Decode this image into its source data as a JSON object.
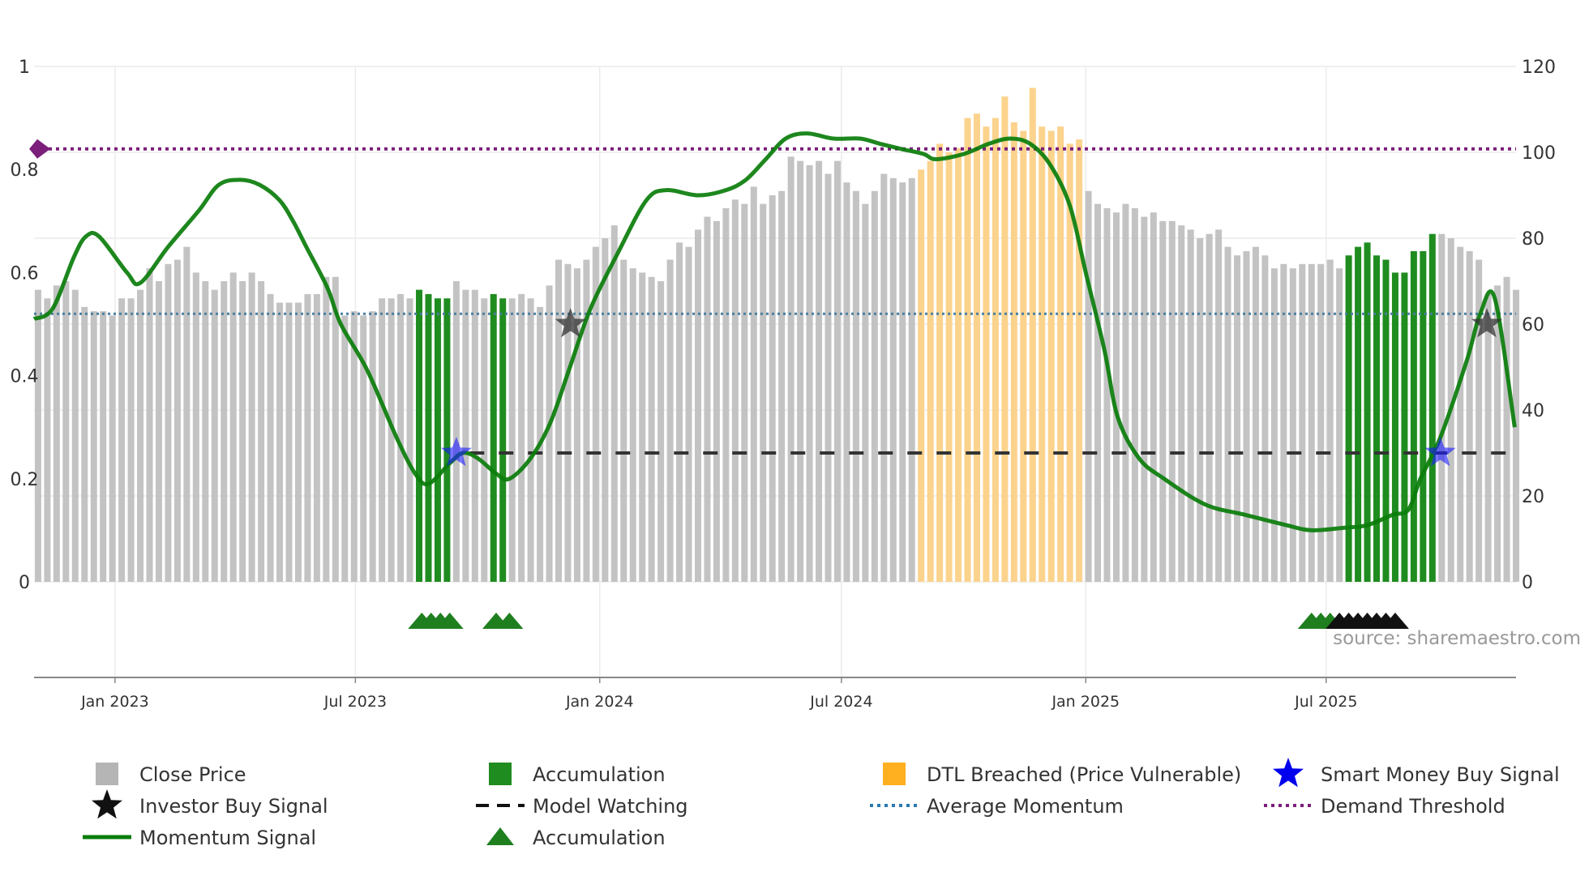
{
  "chart_data": {
    "type": "bar",
    "title": "",
    "source_text": "source: sharemaestro.com",
    "left_axis": {
      "ylim": [
        0,
        1
      ],
      "ticks": [
        0,
        0.2,
        0.4,
        0.6,
        0.8,
        1
      ],
      "tick_labels": [
        "0",
        "0.2",
        "0.4",
        "0.6",
        "0.8",
        "1"
      ]
    },
    "right_axis": {
      "ylim": [
        0,
        120
      ],
      "ticks": [
        0,
        20,
        40,
        60,
        80,
        100,
        120
      ],
      "tick_labels": [
        "0",
        "20",
        "40",
        "60",
        "80",
        "100",
        "120"
      ]
    },
    "x_axis": {
      "start": "2022-11-01",
      "end": "2025-11-21",
      "ticks": [
        {
          "date": "2023-01-01",
          "label": "Jan 2023"
        },
        {
          "date": "2023-07-01",
          "label": "Jul 2023"
        },
        {
          "date": "2024-01-01",
          "label": "Jan 2024"
        },
        {
          "date": "2024-07-01",
          "label": "Jul 2024"
        },
        {
          "date": "2025-01-01",
          "label": "Jan 2025"
        },
        {
          "date": "2025-07-01",
          "label": "Jul 2025"
        }
      ]
    },
    "bars": {
      "start": "2022-11-04",
      "interval_days": 7,
      "close_price": [
        68,
        66,
        69,
        70,
        68,
        64,
        63,
        63,
        62,
        66,
        66,
        68,
        73,
        70,
        74,
        75,
        78,
        72,
        70,
        68,
        70,
        72,
        70,
        72,
        70,
        67,
        65,
        65,
        65,
        67,
        67,
        71,
        71,
        62,
        63,
        62,
        63,
        66,
        66,
        67,
        66,
        68,
        67,
        66,
        66,
        70,
        68,
        68,
        66,
        67,
        66,
        66,
        67,
        66,
        64,
        69,
        75,
        74,
        73,
        75,
        78,
        80,
        83,
        75,
        73,
        72,
        71,
        70,
        75,
        79,
        78,
        82,
        85,
        84,
        87,
        89,
        88,
        92,
        88,
        90,
        91,
        99,
        98,
        97,
        98,
        95,
        98,
        93,
        91,
        88,
        91,
        95,
        94,
        93,
        94,
        96,
        98,
        102,
        100,
        101,
        108,
        109,
        106,
        108,
        113,
        107,
        105,
        115,
        106,
        105,
        106,
        102,
        103,
        91,
        88,
        87,
        86,
        88,
        87,
        85,
        86,
        84,
        84,
        83,
        82,
        80,
        81,
        82,
        78,
        76,
        77,
        78,
        76,
        73,
        74,
        73,
        74,
        74,
        74,
        75,
        73,
        76,
        78,
        79,
        76,
        75,
        72,
        72,
        77,
        77,
        81,
        81,
        80,
        78,
        77,
        75,
        67,
        69,
        71,
        68
      ],
      "state": [
        "n",
        "n",
        "n",
        "n",
        "n",
        "n",
        "n",
        "n",
        "n",
        "n",
        "n",
        "n",
        "n",
        "n",
        "n",
        "n",
        "n",
        "n",
        "n",
        "n",
        "n",
        "n",
        "n",
        "n",
        "n",
        "n",
        "n",
        "n",
        "n",
        "n",
        "n",
        "n",
        "n",
        "n",
        "n",
        "n",
        "n",
        "n",
        "n",
        "n",
        "n",
        "a",
        "a",
        "a",
        "a",
        "n",
        "n",
        "n",
        "n",
        "a",
        "a",
        "n",
        "n",
        "n",
        "n",
        "n",
        "n",
        "n",
        "n",
        "n",
        "n",
        "n",
        "n",
        "n",
        "n",
        "n",
        "n",
        "n",
        "n",
        "n",
        "n",
        "n",
        "n",
        "n",
        "n",
        "n",
        "n",
        "n",
        "n",
        "n",
        "n",
        "n",
        "n",
        "n",
        "n",
        "n",
        "n",
        "n",
        "n",
        "n",
        "n",
        "n",
        "n",
        "n",
        "n",
        "d",
        "d",
        "d",
        "d",
        "d",
        "d",
        "d",
        "d",
        "d",
        "d",
        "d",
        "d",
        "d",
        "d",
        "d",
        "d",
        "d",
        "d",
        "n",
        "n",
        "n",
        "n",
        "n",
        "n",
        "n",
        "n",
        "n",
        "n",
        "n",
        "n",
        "n",
        "n",
        "n",
        "n",
        "n",
        "n",
        "n",
        "n",
        "n",
        "n",
        "n",
        "n",
        "n",
        "n",
        "n",
        "n",
        "a",
        "a",
        "a",
        "a",
        "a",
        "a",
        "a",
        "a",
        "a",
        "a",
        "n",
        "n",
        "n",
        "n",
        "n",
        "n",
        "n",
        "n",
        "n",
        "n"
      ]
    },
    "momentum_signal": [
      [
        "2022-11-01",
        0.51
      ],
      [
        "2022-11-15",
        0.53
      ],
      [
        "2022-12-01",
        0.63
      ],
      [
        "2022-12-10",
        0.67
      ],
      [
        "2022-12-20",
        0.67
      ],
      [
        "2023-01-10",
        0.6
      ],
      [
        "2023-01-20",
        0.58
      ],
      [
        "2023-02-10",
        0.65
      ],
      [
        "2023-03-05",
        0.72
      ],
      [
        "2023-03-20",
        0.77
      ],
      [
        "2023-04-05",
        0.78
      ],
      [
        "2023-04-20",
        0.77
      ],
      [
        "2023-05-05",
        0.74
      ],
      [
        "2023-05-15",
        0.7
      ],
      [
        "2023-05-25",
        0.65
      ],
      [
        "2023-06-10",
        0.57
      ],
      [
        "2023-06-20",
        0.5
      ],
      [
        "2023-07-10",
        0.41
      ],
      [
        "2023-08-01",
        0.28
      ],
      [
        "2023-08-15",
        0.21
      ],
      [
        "2023-08-25",
        0.19
      ],
      [
        "2023-09-10",
        0.23
      ],
      [
        "2023-09-20",
        0.25
      ],
      [
        "2023-10-01",
        0.24
      ],
      [
        "2023-10-15",
        0.21
      ],
      [
        "2023-10-25",
        0.2
      ],
      [
        "2023-11-10",
        0.24
      ],
      [
        "2023-11-25",
        0.31
      ],
      [
        "2023-12-10",
        0.42
      ],
      [
        "2023-12-25",
        0.53
      ],
      [
        "2024-01-15",
        0.64
      ],
      [
        "2024-02-05",
        0.74
      ],
      [
        "2024-02-20",
        0.76
      ],
      [
        "2024-03-15",
        0.75
      ],
      [
        "2024-04-05",
        0.76
      ],
      [
        "2024-04-20",
        0.78
      ],
      [
        "2024-05-05",
        0.82
      ],
      [
        "2024-05-20",
        0.86
      ],
      [
        "2024-06-05",
        0.87
      ],
      [
        "2024-06-25",
        0.86
      ],
      [
        "2024-07-15",
        0.86
      ],
      [
        "2024-07-30",
        0.85
      ],
      [
        "2024-08-15",
        0.84
      ],
      [
        "2024-09-01",
        0.83
      ],
      [
        "2024-09-10",
        0.82
      ],
      [
        "2024-10-01",
        0.83
      ],
      [
        "2024-10-20",
        0.85
      ],
      [
        "2024-11-05",
        0.86
      ],
      [
        "2024-11-20",
        0.85
      ],
      [
        "2024-12-05",
        0.81
      ],
      [
        "2024-12-20",
        0.73
      ],
      [
        "2025-01-01",
        0.6
      ],
      [
        "2025-01-15",
        0.45
      ],
      [
        "2025-01-25",
        0.32
      ],
      [
        "2025-02-10",
        0.24
      ],
      [
        "2025-03-01",
        0.2
      ],
      [
        "2025-04-01",
        0.15
      ],
      [
        "2025-05-01",
        0.13
      ],
      [
        "2025-06-01",
        0.11
      ],
      [
        "2025-06-20",
        0.1
      ],
      [
        "2025-07-15",
        0.105
      ],
      [
        "2025-08-01",
        0.11
      ],
      [
        "2025-08-20",
        0.13
      ],
      [
        "2025-09-01",
        0.14
      ],
      [
        "2025-09-10",
        0.2
      ],
      [
        "2025-09-25",
        0.28
      ],
      [
        "2025-10-15",
        0.43
      ],
      [
        "2025-10-25",
        0.52
      ],
      [
        "2025-11-05",
        0.55
      ],
      [
        "2025-11-20",
        0.3
      ]
    ],
    "average_momentum": 0.52,
    "demand_threshold": 0.84,
    "model_watching": {
      "value": 0.25,
      "start": "2023-09-25",
      "end": "2025-11-20"
    },
    "smart_money_buy_signals": [
      {
        "date": "2023-09-15",
        "value": 0.25
      },
      {
        "date": "2025-09-25",
        "value": 0.25
      }
    ],
    "investor_buy_signals": [
      {
        "date": "2023-12-10",
        "value": 0.5
      },
      {
        "date": "2025-10-30",
        "value": 0.5
      }
    ],
    "accumulation_markers": [
      {
        "date": "2023-08-20",
        "color": "#1f7f1f"
      },
      {
        "date": "2023-08-27",
        "color": "#1f7f1f"
      },
      {
        "date": "2023-09-03",
        "color": "#1f7f1f"
      },
      {
        "date": "2023-09-10",
        "color": "#1f7f1f"
      },
      {
        "date": "2023-10-15",
        "color": "#1f7f1f"
      },
      {
        "date": "2023-10-25",
        "color": "#1f7f1f"
      },
      {
        "date": "2025-06-20",
        "color": "#1f7f1f"
      },
      {
        "date": "2025-06-27",
        "color": "#1f7f1f"
      },
      {
        "date": "2025-07-04",
        "color": "#1f7f1f"
      },
      {
        "date": "2025-07-11",
        "color": "#111111"
      },
      {
        "date": "2025-07-18",
        "color": "#111111"
      },
      {
        "date": "2025-07-25",
        "color": "#111111"
      },
      {
        "date": "2025-08-01",
        "color": "#111111"
      },
      {
        "date": "2025-08-08",
        "color": "#111111"
      },
      {
        "date": "2025-08-15",
        "color": "#111111"
      },
      {
        "date": "2025-08-22",
        "color": "#111111"
      }
    ],
    "colors": {
      "close_price": "#c0c0c0",
      "accumulation": "#1f8c1f",
      "dtl_breached": "#fbd38d",
      "momentum": "#0a7d0a",
      "average_momentum": "#4a7fa0",
      "demand_threshold": "#7b1f7b",
      "model_watching": "#333333",
      "smart_money": "#1a1aff",
      "investor": "#333333"
    },
    "legend": [
      {
        "key": "close_price",
        "label": "Close Price",
        "symbol": "square",
        "color": "#b5b5b5"
      },
      {
        "key": "accumulation_bar",
        "label": "Accumulation",
        "symbol": "square",
        "color": "#1f8c1f"
      },
      {
        "key": "dtl",
        "label": "DTL Breached (Price Vulnerable)",
        "symbol": "square",
        "color": "#ffb020"
      },
      {
        "key": "smart_money",
        "label": "Smart Money Buy Signal",
        "symbol": "star",
        "color": "#0000ee"
      },
      {
        "key": "investor",
        "label": "Investor Buy Signal",
        "symbol": "star",
        "color": "#111111"
      },
      {
        "key": "model_watching",
        "label": "Model Watching",
        "symbol": "dash",
        "color": "#111111"
      },
      {
        "key": "average_momentum",
        "label": "Average Momentum",
        "symbol": "dot",
        "color": "#2a7ab0"
      },
      {
        "key": "demand_threshold",
        "label": "Demand Threshold",
        "symbol": "dot",
        "color": "#7b1f7b"
      },
      {
        "key": "momentum",
        "label": "Momentum Signal",
        "symbol": "line",
        "color": "#0a7d0a"
      },
      {
        "key": "accumulation_marker",
        "label": "Accumulation",
        "symbol": "triangle",
        "color": "#1f7f1f"
      }
    ]
  }
}
